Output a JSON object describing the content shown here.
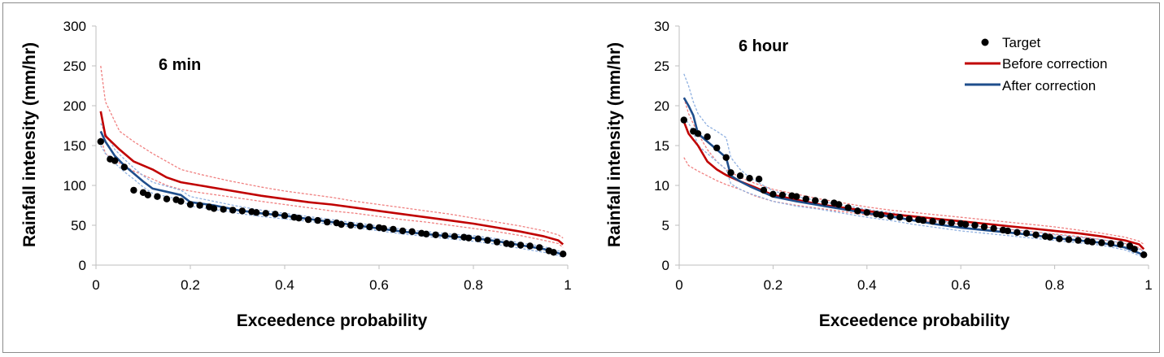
{
  "colors": {
    "target": "#000000",
    "before": "#c00000",
    "before_band": "#f08080",
    "after": "#1f4e8c",
    "after_band": "#8fb0e0",
    "axis": "#bfbfbf"
  },
  "legend": {
    "target_label": "Target",
    "before_label": "Before correction",
    "after_label": "After correction"
  },
  "chart_data": [
    {
      "type": "line",
      "title": "6 min",
      "xlabel": "Exceedence probability",
      "ylabel": "Rainfall intensity (mm/hr)",
      "xlim": [
        0,
        1
      ],
      "ylim": [
        0,
        300
      ],
      "xticks": [
        "0",
        "0.2",
        "0.4",
        "0.6",
        "0.8",
        "1"
      ],
      "yticks": [
        "0",
        "50",
        "100",
        "150",
        "200",
        "250",
        "300"
      ],
      "series": [
        {
          "name": "Target",
          "kind": "scatter",
          "x": [
            0.01,
            0.03,
            0.04,
            0.06,
            0.08,
            0.1,
            0.11,
            0.13,
            0.15,
            0.17,
            0.18,
            0.2,
            0.22,
            0.24,
            0.25,
            0.27,
            0.29,
            0.31,
            0.33,
            0.34,
            0.36,
            0.38,
            0.4,
            0.42,
            0.43,
            0.45,
            0.47,
            0.49,
            0.51,
            0.52,
            0.54,
            0.56,
            0.58,
            0.6,
            0.61,
            0.63,
            0.65,
            0.67,
            0.69,
            0.7,
            0.72,
            0.74,
            0.76,
            0.78,
            0.79,
            0.81,
            0.83,
            0.85,
            0.87,
            0.88,
            0.9,
            0.92,
            0.94,
            0.96,
            0.97,
            0.99
          ],
          "y": [
            155,
            133,
            131,
            123,
            94,
            91,
            88,
            86,
            83,
            82,
            80,
            76,
            75,
            73,
            71,
            70,
            69,
            68,
            67,
            66,
            65,
            64,
            62,
            60,
            59,
            57,
            56,
            54,
            53,
            51,
            50,
            49,
            48,
            47,
            46,
            45,
            43,
            42,
            40,
            39,
            38,
            37,
            36,
            35,
            34,
            33,
            31,
            29,
            27,
            26,
            25,
            24,
            22,
            18,
            16,
            14
          ]
        },
        {
          "name": "Before correction",
          "kind": "line",
          "x": [
            0.01,
            0.02,
            0.05,
            0.08,
            0.12,
            0.15,
            0.18,
            0.22,
            0.28,
            0.35,
            0.4,
            0.45,
            0.5,
            0.55,
            0.6,
            0.65,
            0.7,
            0.75,
            0.8,
            0.85,
            0.9,
            0.95,
            0.98,
            0.99
          ],
          "y": [
            193,
            162,
            145,
            130,
            120,
            110,
            104,
            100,
            94,
            87,
            83,
            79,
            76,
            72,
            68,
            64,
            60,
            56,
            52,
            47,
            42,
            36,
            31,
            26
          ]
        },
        {
          "name": "Before correction upper",
          "kind": "band",
          "x": [
            0.01,
            0.02,
            0.05,
            0.08,
            0.12,
            0.15,
            0.18,
            0.22,
            0.28,
            0.35,
            0.4,
            0.45,
            0.5,
            0.55,
            0.6,
            0.65,
            0.7,
            0.75,
            0.8,
            0.85,
            0.9,
            0.95,
            0.98,
            0.99
          ],
          "y": [
            250,
            205,
            168,
            155,
            140,
            130,
            120,
            114,
            106,
            98,
            93,
            89,
            85,
            80,
            76,
            72,
            68,
            64,
            59,
            54,
            49,
            43,
            38,
            34
          ]
        },
        {
          "name": "Before correction lower",
          "kind": "band",
          "x": [
            0.01,
            0.02,
            0.05,
            0.08,
            0.12,
            0.15,
            0.18,
            0.22,
            0.28,
            0.35,
            0.4,
            0.45,
            0.5,
            0.55,
            0.6,
            0.65,
            0.7,
            0.75,
            0.8,
            0.85,
            0.9,
            0.95,
            0.98,
            0.99
          ],
          "y": [
            160,
            140,
            128,
            118,
            108,
            100,
            95,
            91,
            86,
            80,
            76,
            72,
            68,
            65,
            61,
            57,
            54,
            50,
            46,
            42,
            37,
            31,
            27,
            22
          ]
        },
        {
          "name": "After correction",
          "kind": "line",
          "x": [
            0.01,
            0.02,
            0.04,
            0.06,
            0.08,
            0.1,
            0.12,
            0.15,
            0.18,
            0.2,
            0.25,
            0.3,
            0.35,
            0.4,
            0.45,
            0.5,
            0.55,
            0.6,
            0.65,
            0.7,
            0.75,
            0.8,
            0.85,
            0.9,
            0.95,
            0.98,
            0.99
          ],
          "y": [
            168,
            155,
            137,
            125,
            115,
            105,
            96,
            92,
            88,
            79,
            75,
            69,
            65,
            62,
            58,
            54,
            50,
            46,
            42,
            39,
            36,
            34,
            30,
            25,
            20,
            15,
            13
          ]
        },
        {
          "name": "After correction upper",
          "kind": "band",
          "x": [
            0.01,
            0.02,
            0.04,
            0.06,
            0.08,
            0.1,
            0.12,
            0.15,
            0.18,
            0.2,
            0.25,
            0.3,
            0.35,
            0.4,
            0.45,
            0.5,
            0.55,
            0.6,
            0.65,
            0.7,
            0.75,
            0.8,
            0.85,
            0.9,
            0.95,
            0.98,
            0.99
          ],
          "y": [
            178,
            165,
            145,
            133,
            122,
            112,
            104,
            99,
            94,
            86,
            80,
            74,
            69,
            65,
            61,
            57,
            53,
            49,
            45,
            42,
            39,
            37,
            33,
            28,
            23,
            18,
            16
          ]
        },
        {
          "name": "After correction lower",
          "kind": "band",
          "x": [
            0.01,
            0.02,
            0.04,
            0.06,
            0.08,
            0.1,
            0.12,
            0.15,
            0.18,
            0.2,
            0.25,
            0.3,
            0.35,
            0.4,
            0.45,
            0.5,
            0.55,
            0.6,
            0.65,
            0.7,
            0.75,
            0.8,
            0.85,
            0.9,
            0.95,
            0.98,
            0.99
          ],
          "y": [
            150,
            140,
            128,
            117,
            108,
            98,
            90,
            86,
            82,
            74,
            70,
            65,
            61,
            58,
            55,
            51,
            47,
            43,
            39,
            36,
            33,
            30,
            26,
            21,
            16,
            12,
            10
          ]
        }
      ]
    },
    {
      "type": "line",
      "title": "6 hour",
      "xlabel": "Exceedence probability",
      "ylabel": "Rainfall intensity (mm/hr)",
      "xlim": [
        0,
        1
      ],
      "ylim": [
        0,
        30
      ],
      "xticks": [
        "0",
        "0.2",
        "0.4",
        "0.6",
        "0.8",
        "1"
      ],
      "yticks": [
        "0",
        "5",
        "10",
        "15",
        "20",
        "25",
        "30"
      ],
      "legend_position": "top-right",
      "series": [
        {
          "name": "Target",
          "kind": "scatter",
          "x": [
            0.01,
            0.03,
            0.04,
            0.06,
            0.08,
            0.1,
            0.11,
            0.13,
            0.15,
            0.17,
            0.18,
            0.2,
            0.22,
            0.24,
            0.25,
            0.27,
            0.29,
            0.31,
            0.33,
            0.34,
            0.36,
            0.38,
            0.4,
            0.42,
            0.43,
            0.45,
            0.47,
            0.49,
            0.51,
            0.52,
            0.54,
            0.56,
            0.58,
            0.6,
            0.61,
            0.63,
            0.65,
            0.67,
            0.69,
            0.7,
            0.72,
            0.74,
            0.76,
            0.78,
            0.79,
            0.81,
            0.83,
            0.85,
            0.87,
            0.88,
            0.9,
            0.92,
            0.94,
            0.96,
            0.97,
            0.99
          ],
          "y": [
            18.2,
            16.8,
            16.5,
            16.1,
            14.7,
            13.5,
            11.6,
            11.2,
            10.9,
            10.8,
            9.4,
            8.9,
            8.8,
            8.7,
            8.6,
            8.3,
            8.1,
            7.9,
            7.8,
            7.6,
            7.2,
            6.8,
            6.6,
            6.4,
            6.3,
            6.1,
            6.0,
            5.8,
            5.7,
            5.6,
            5.5,
            5.4,
            5.3,
            5.2,
            5.1,
            5.0,
            4.8,
            4.6,
            4.4,
            4.3,
            4.1,
            4.0,
            3.8,
            3.6,
            3.5,
            3.3,
            3.2,
            3.1,
            3.0,
            2.9,
            2.8,
            2.7,
            2.6,
            2.4,
            2.0,
            1.3
          ]
        },
        {
          "name": "Before correction",
          "kind": "line",
          "x": [
            0.01,
            0.02,
            0.04,
            0.06,
            0.08,
            0.1,
            0.13,
            0.16,
            0.2,
            0.25,
            0.3,
            0.35,
            0.4,
            0.45,
            0.5,
            0.55,
            0.6,
            0.65,
            0.7,
            0.75,
            0.8,
            0.85,
            0.9,
            0.95,
            0.98,
            0.99
          ],
          "y": [
            18.0,
            16.5,
            15.0,
            13.0,
            12.0,
            11.3,
            10.5,
            9.8,
            8.8,
            8.2,
            7.6,
            7.2,
            6.8,
            6.4,
            6.1,
            5.8,
            5.5,
            5.2,
            4.9,
            4.6,
            4.3,
            4.0,
            3.6,
            3.1,
            2.6,
            2.0
          ]
        },
        {
          "name": "Before correction upper",
          "kind": "band",
          "x": [
            0.01,
            0.02,
            0.04,
            0.06,
            0.08,
            0.1,
            0.13,
            0.16,
            0.2,
            0.25,
            0.3,
            0.35,
            0.4,
            0.45,
            0.5,
            0.55,
            0.6,
            0.65,
            0.7,
            0.75,
            0.8,
            0.85,
            0.9,
            0.95,
            0.98,
            0.99
          ],
          "y": [
            21.0,
            19.0,
            16.5,
            14.5,
            13.0,
            12.0,
            11.0,
            10.3,
            9.5,
            8.9,
            8.3,
            7.8,
            7.3,
            6.9,
            6.6,
            6.3,
            6.0,
            5.7,
            5.4,
            5.1,
            4.8,
            4.4,
            4.0,
            3.5,
            3.0,
            2.6
          ]
        },
        {
          "name": "Before correction lower",
          "kind": "band",
          "x": [
            0.01,
            0.02,
            0.04,
            0.06,
            0.08,
            0.1,
            0.13,
            0.16,
            0.2,
            0.25,
            0.3,
            0.35,
            0.4,
            0.45,
            0.5,
            0.55,
            0.6,
            0.65,
            0.7,
            0.75,
            0.8,
            0.85,
            0.9,
            0.95,
            0.98,
            0.99
          ],
          "y": [
            13.5,
            12.5,
            11.8,
            11.2,
            10.6,
            10.1,
            9.5,
            8.7,
            8.0,
            7.5,
            7.1,
            6.7,
            6.3,
            6.0,
            5.7,
            5.4,
            5.1,
            4.8,
            4.5,
            4.2,
            3.9,
            3.6,
            3.2,
            2.7,
            2.2,
            1.6
          ]
        },
        {
          "name": "After correction",
          "kind": "line",
          "x": [
            0.01,
            0.02,
            0.03,
            0.04,
            0.06,
            0.08,
            0.1,
            0.11,
            0.13,
            0.15,
            0.2,
            0.25,
            0.3,
            0.35,
            0.4,
            0.45,
            0.5,
            0.55,
            0.6,
            0.65,
            0.7,
            0.75,
            0.8,
            0.85,
            0.9,
            0.95,
            0.98,
            0.99
          ],
          "y": [
            21.0,
            20.0,
            18.8,
            16.5,
            15.5,
            14.5,
            13.5,
            11.2,
            10.5,
            9.9,
            8.6,
            8.0,
            7.5,
            7.0,
            6.5,
            6.1,
            5.6,
            5.1,
            4.7,
            4.4,
            4.1,
            3.8,
            3.4,
            3.1,
            2.8,
            2.2,
            1.5,
            1.2
          ]
        },
        {
          "name": "After correction upper",
          "kind": "band",
          "x": [
            0.01,
            0.02,
            0.03,
            0.04,
            0.06,
            0.08,
            0.1,
            0.11,
            0.13,
            0.15,
            0.2,
            0.25,
            0.3,
            0.35,
            0.4,
            0.45,
            0.5,
            0.55,
            0.6,
            0.65,
            0.7,
            0.75,
            0.8,
            0.85,
            0.9,
            0.95,
            0.98,
            0.99
          ],
          "y": [
            24.0,
            22.5,
            20.5,
            19.0,
            17.5,
            16.8,
            16.0,
            13.5,
            12.0,
            11.0,
            9.3,
            8.6,
            8.0,
            7.5,
            7.0,
            6.6,
            6.1,
            5.6,
            5.2,
            4.8,
            4.5,
            4.2,
            3.8,
            3.5,
            3.2,
            2.7,
            2.0,
            1.7
          ]
        },
        {
          "name": "After correction lower",
          "kind": "band",
          "x": [
            0.01,
            0.02,
            0.03,
            0.04,
            0.06,
            0.08,
            0.1,
            0.11,
            0.13,
            0.15,
            0.2,
            0.25,
            0.3,
            0.35,
            0.4,
            0.45,
            0.5,
            0.55,
            0.6,
            0.65,
            0.7,
            0.75,
            0.8,
            0.85,
            0.9,
            0.95,
            0.98,
            0.99
          ],
          "y": [
            18.5,
            17.8,
            16.8,
            15.0,
            14.0,
            13.0,
            12.0,
            10.2,
            9.5,
            9.0,
            8.0,
            7.4,
            7.0,
            6.5,
            6.0,
            5.6,
            5.1,
            4.7,
            4.3,
            4.0,
            3.7,
            3.4,
            3.1,
            2.8,
            2.5,
            1.9,
            1.2,
            1.0
          ]
        }
      ]
    }
  ]
}
